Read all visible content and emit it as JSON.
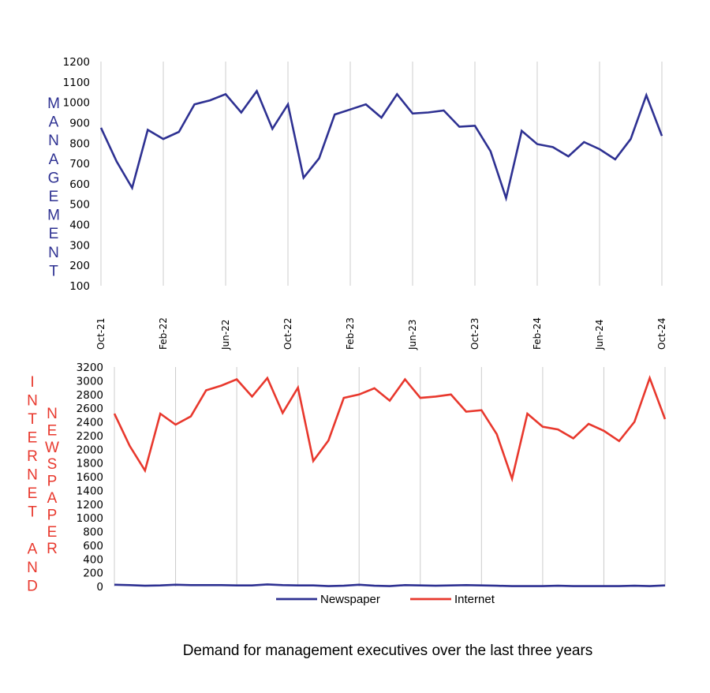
{
  "colors": {
    "newspaper": "#2e3192",
    "internet": "#e8382d",
    "management_label": "#2e3192",
    "lower_label": "#e8382d",
    "grid": "#cccccc"
  },
  "caption": "Demand for management executives over the last three years",
  "chart_data": [
    {
      "type": "line",
      "title": "",
      "ylabel": "MANAGEMENT",
      "xlabel": "",
      "ylim": [
        100,
        1200
      ],
      "yticks": [
        "1200",
        "1100",
        "1000",
        "900",
        "800",
        "700",
        "600",
        "500",
        "400",
        "300",
        "200",
        "100"
      ],
      "ytick_values": [
        1200,
        1100,
        1000,
        900,
        800,
        700,
        600,
        500,
        400,
        300,
        200,
        100
      ],
      "xtick_labels": [
        "Oct-21",
        "Feb-22",
        "Jun-22",
        "Oct-22",
        "Feb-23",
        "Jun-23",
        "Oct-23",
        "Feb-24",
        "Jun-24",
        "Oct-24"
      ],
      "xtick_index": [
        0,
        4,
        8,
        12,
        16,
        20,
        24,
        28,
        32,
        36
      ],
      "grid": "vertical",
      "series": [
        {
          "name": "Management",
          "color": "#2e3192",
          "values": [
            875,
            710,
            580,
            865,
            820,
            855,
            990,
            1010,
            1040,
            950,
            1055,
            870,
            990,
            630,
            725,
            940,
            965,
            990,
            925,
            1040,
            945,
            950,
            960,
            880,
            885,
            760,
            530,
            860,
            795,
            780,
            735,
            805,
            770,
            720,
            820,
            1035,
            835
          ]
        }
      ]
    },
    {
      "type": "line",
      "title": "",
      "ylabel_outer": "INTERNET AND",
      "ylabel_inner": "NEWSPAPER",
      "ylim": [
        0,
        3200
      ],
      "yticks": [
        "3200",
        "3000",
        "2800",
        "2600",
        "2400",
        "2200",
        "2000",
        "1800",
        "1600",
        "1400",
        "1200",
        "1000",
        "800",
        "600",
        "400",
        "200",
        "0"
      ],
      "ytick_values": [
        3200,
        3000,
        2800,
        2600,
        2400,
        2200,
        2000,
        1800,
        1600,
        1400,
        1200,
        1000,
        800,
        600,
        400,
        200,
        0
      ],
      "grid": "vertical",
      "legend": "bottom",
      "series": [
        {
          "name": "Newspaper",
          "color": "#2e3192",
          "values": [
            25,
            20,
            10,
            15,
            25,
            20,
            20,
            20,
            15,
            15,
            30,
            20,
            15,
            15,
            5,
            10,
            25,
            10,
            5,
            20,
            15,
            10,
            15,
            20,
            15,
            10,
            5,
            5,
            5,
            10,
            5,
            5,
            5,
            5,
            10,
            5,
            15
          ]
        },
        {
          "name": "Internet",
          "color": "#e8382d",
          "values": [
            2520,
            2050,
            1690,
            2520,
            2360,
            2480,
            2860,
            2930,
            3020,
            2770,
            3040,
            2530,
            2900,
            1830,
            2130,
            2750,
            2800,
            2890,
            2710,
            3020,
            2750,
            2770,
            2800,
            2550,
            2570,
            2220,
            1570,
            2520,
            2330,
            2290,
            2160,
            2370,
            2270,
            2120,
            2400,
            3040,
            2440
          ]
        }
      ]
    }
  ]
}
